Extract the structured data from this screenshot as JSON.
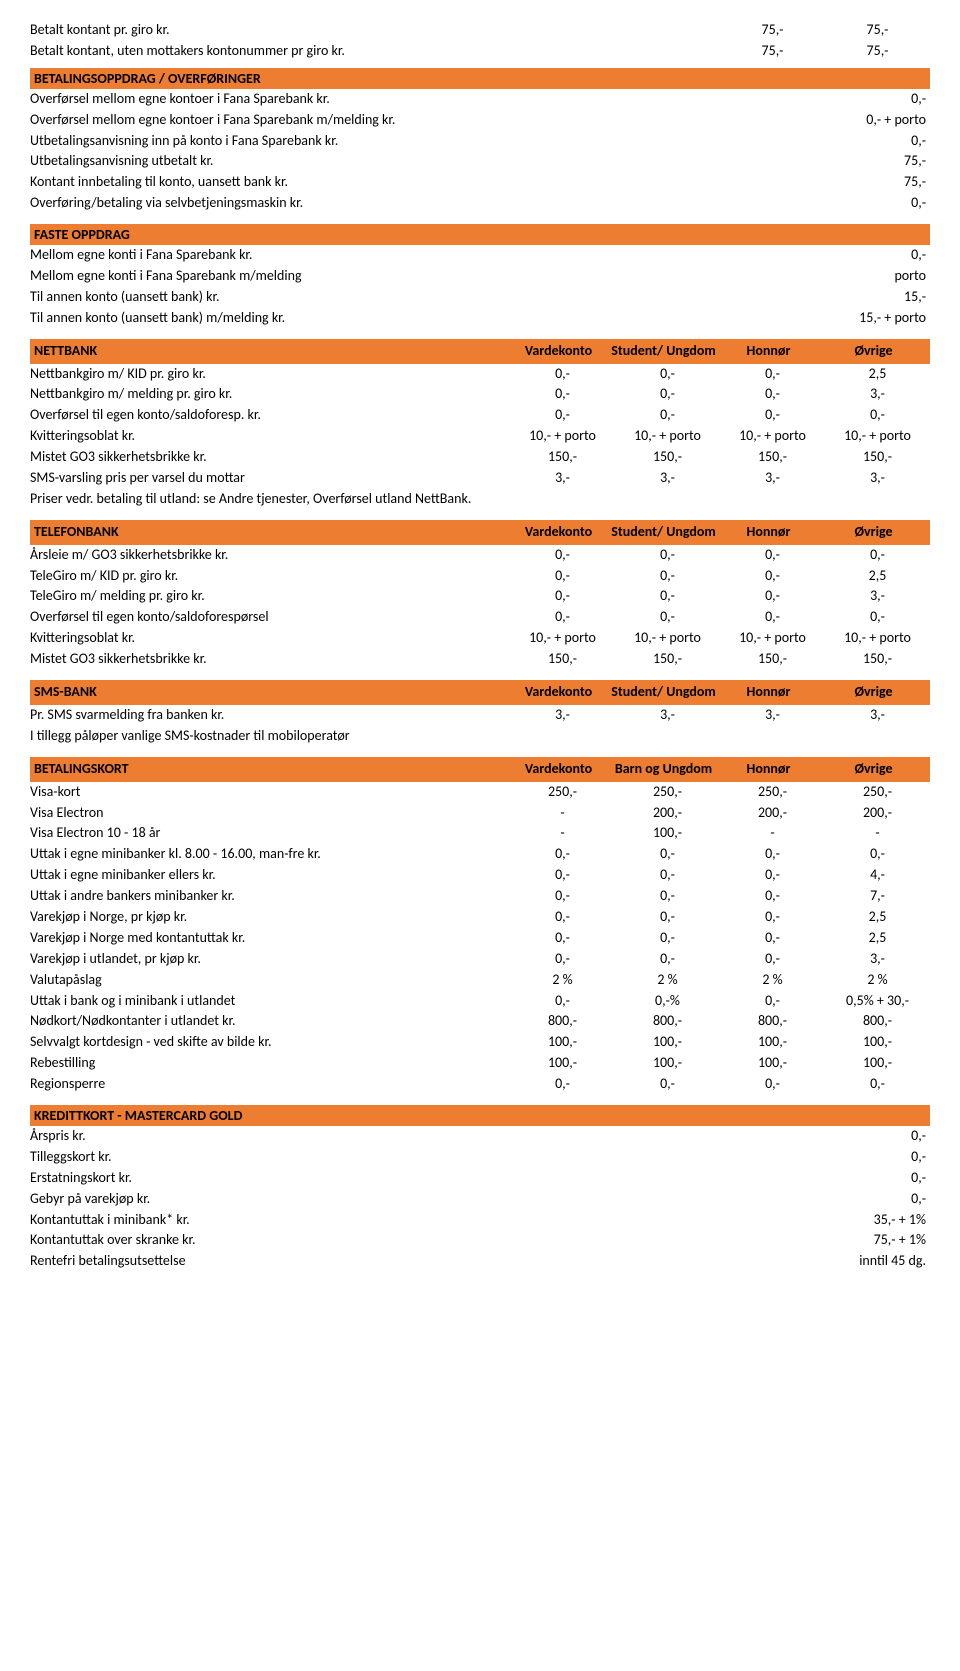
{
  "colors": {
    "header_bg": "#ed7d31",
    "text": "#000000",
    "bg": "#ffffff"
  },
  "fonts": {
    "family": "Calibri, Arial, sans-serif",
    "size_pt": 11
  },
  "top": {
    "r1": {
      "label": "Betalt kontant pr. giro kr.",
      "c1": "75,-",
      "c2": "75,-"
    },
    "r2": {
      "label": "Betalt kontant, uten mottakers kontonummer pr giro kr.",
      "c1": "75,-",
      "c2": "75,-"
    }
  },
  "betalingsoppdrag": {
    "title": "BETALINGSOPPDRAG / OVERFØRINGER",
    "rows": [
      {
        "label": "Overførsel mellom egne kontoer i Fana Sparebank kr.",
        "val": "0,-"
      },
      {
        "label": "Overførsel mellom egne kontoer i Fana Sparebank m/melding kr.",
        "val": "0,- + porto"
      },
      {
        "label": "Utbetalingsanvisning inn på konto i Fana Sparebank kr.",
        "val": "0,-"
      },
      {
        "label": "Utbetalingsanvisning utbetalt kr.",
        "val": "75,-"
      },
      {
        "label": "Kontant innbetaling til konto, uansett bank kr.",
        "val": "75,-"
      },
      {
        "label": "Overføring/betaling via selvbetjeningsmaskin kr.",
        "val": "0,-"
      }
    ]
  },
  "fasteoppdrag": {
    "title": "FASTE OPPDRAG",
    "rows": [
      {
        "label": "Mellom egne konti i Fana Sparebank kr.",
        "val": "0,-"
      },
      {
        "label": "Mellom egne konti i Fana Sparebank m/melding",
        "val": "porto"
      },
      {
        "label": "Til annen konto (uansett bank) kr.",
        "val": "15,-"
      },
      {
        "label": "Til annen konto (uansett bank) m/melding kr.",
        "val": "15,- + porto"
      }
    ]
  },
  "nettbank": {
    "title": "NETTBANK",
    "cols": [
      "Vardekonto",
      "Student/ Ungdom",
      "Honnør",
      "Øvrige"
    ],
    "rows": [
      {
        "label": "Nettbankgiro m/ KID pr. giro kr.",
        "c": [
          "0,-",
          "0,-",
          "0,-",
          "2,5"
        ]
      },
      {
        "label": "Nettbankgiro m/ melding pr. giro kr.",
        "c": [
          "0,-",
          "0,-",
          "0,-",
          "3,-"
        ]
      },
      {
        "label": "Overførsel til egen konto/saldoforesp. kr.",
        "c": [
          "0,-",
          "0,-",
          "0,-",
          "0,-"
        ]
      },
      {
        "label": "Kvitteringsoblat kr.",
        "c": [
          "10,- + porto",
          "10,- + porto",
          "10,- + porto",
          "10,- + porto"
        ]
      },
      {
        "label": "Mistet GO3 sikkerhetsbrikke kr.",
        "c": [
          "150,-",
          "150,-",
          "150,-",
          "150,-"
        ]
      },
      {
        "label": "SMS-varsling pris per varsel du mottar",
        "c": [
          "3,-",
          "3,-",
          "3,-",
          "3,-"
        ]
      }
    ],
    "note": "Priser vedr. betaling til utland: se Andre tjenester, Overførsel utland NettBank."
  },
  "telefonbank": {
    "title": "TELEFONBANK",
    "cols": [
      "Vardekonto",
      "Student/ Ungdom",
      "Honnør",
      "Øvrige"
    ],
    "rows": [
      {
        "label": "Årsleie m/ GO3 sikkerhetsbrikke kr.",
        "c": [
          "0,-",
          "0,-",
          "0,-",
          "0,-"
        ]
      },
      {
        "label": "TeleGiro m/ KID pr. giro kr.",
        "c": [
          "0,-",
          "0,-",
          "0,-",
          "2,5"
        ]
      },
      {
        "label": "TeleGiro m/ melding pr. giro kr.",
        "c": [
          "0,-",
          "0,-",
          "0,-",
          "3,-"
        ]
      },
      {
        "label": "Overførsel til egen konto/saldoforespørsel",
        "c": [
          "0,-",
          "0,-",
          "0,-",
          "0,-"
        ]
      },
      {
        "label": "Kvitteringsoblat kr.",
        "c": [
          "10,- + porto",
          "10,- + porto",
          "10,- + porto",
          "10,- + porto"
        ]
      },
      {
        "label": "Mistet GO3 sikkerhetsbrikke kr.",
        "c": [
          "150,-",
          "150,-",
          "150,-",
          "150,-"
        ]
      }
    ]
  },
  "smsbank": {
    "title": "SMS-BANK",
    "cols": [
      "Vardekonto",
      "Student/ Ungdom",
      "Honnør",
      "Øvrige"
    ],
    "rows": [
      {
        "label": "Pr. SMS svarmelding fra banken kr.",
        "c": [
          "3,-",
          "3,-",
          "3,-",
          "3,-"
        ]
      }
    ],
    "note": "I tillegg påløper vanlige SMS-kostnader til mobiloperatør"
  },
  "betalingskort": {
    "title": "BETALINGSKORT",
    "cols": [
      "Vardekonto",
      "Barn og Ungdom",
      "Honnør",
      "Øvrige"
    ],
    "rows": [
      {
        "label": "Visa-kort",
        "c": [
          "250,-",
          "250,-",
          "250,-",
          "250,-"
        ]
      },
      {
        "label": "Visa Electron",
        "c": [
          "-",
          "200,-",
          "200,-",
          "200,-"
        ]
      },
      {
        "label": "Visa Electron 10 - 18 år",
        "c": [
          "-",
          "100,-",
          "-",
          "-"
        ]
      },
      {
        "label": "Uttak i egne minibanker kl. 8.00 - 16.00, man-fre kr.",
        "c": [
          "0,-",
          "0,-",
          "0,-",
          "0,-"
        ]
      },
      {
        "label": "Uttak i egne minibanker ellers kr.",
        "c": [
          "0,-",
          "0,-",
          "0,-",
          "4,-"
        ]
      },
      {
        "label": "Uttak i andre bankers minibanker kr.",
        "c": [
          "0,-",
          "0,-",
          "0,-",
          "7,-"
        ]
      },
      {
        "label": "Varekjøp i Norge, pr kjøp kr.",
        "c": [
          "0,-",
          "0,-",
          "0,-",
          "2,5"
        ]
      },
      {
        "label": "Varekjøp i Norge med kontantuttak kr.",
        "c": [
          "0,-",
          "0,-",
          "0,-",
          "2,5"
        ]
      },
      {
        "label": "Varekjøp i utlandet, pr kjøp kr.",
        "c": [
          "0,-",
          "0,-",
          "0,-",
          "3,-"
        ]
      },
      {
        "label": "Valutapåslag",
        "c": [
          "2 %",
          "2 %",
          "2 %",
          "2 %"
        ]
      },
      {
        "label": "Uttak i bank og i minibank i utlandet",
        "c": [
          "0,-",
          "0,-%",
          "0,-",
          "0,5% + 30,-"
        ]
      },
      {
        "label": "Nødkort/Nødkontanter i utlandet kr.",
        "c": [
          "800,-",
          "800,-",
          "800,-",
          "800,-"
        ]
      },
      {
        "label": "Selvvalgt kortdesign - ved skifte av bilde kr.",
        "c": [
          "100,-",
          "100,-",
          "100,-",
          "100,-"
        ]
      },
      {
        "label": "Rebestilling",
        "c": [
          "100,-",
          "100,-",
          "100,-",
          "100,-"
        ]
      },
      {
        "label": "Regionsperre",
        "c": [
          "0,-",
          "0,-",
          "0,-",
          "0,-"
        ]
      }
    ]
  },
  "kredittkort": {
    "title": "KREDITTKORT - MASTERCARD GOLD",
    "rows": [
      {
        "label": "Årspris kr.",
        "val": "0,-"
      },
      {
        "label": "Tilleggskort kr.",
        "val": "0,-"
      },
      {
        "label": "Erstatningskort kr.",
        "val": "0,-"
      },
      {
        "label": "Gebyr på varekjøp kr.",
        "val": "0,-"
      },
      {
        "label": "Kontantuttak i minibank* kr.",
        "val": "35,- + 1%"
      },
      {
        "label": "Kontantuttak over skranke kr.",
        "val": "75,- + 1%"
      },
      {
        "label": "Rentefri betalingsutsettelse",
        "val": "inntil 45 dg."
      }
    ]
  }
}
